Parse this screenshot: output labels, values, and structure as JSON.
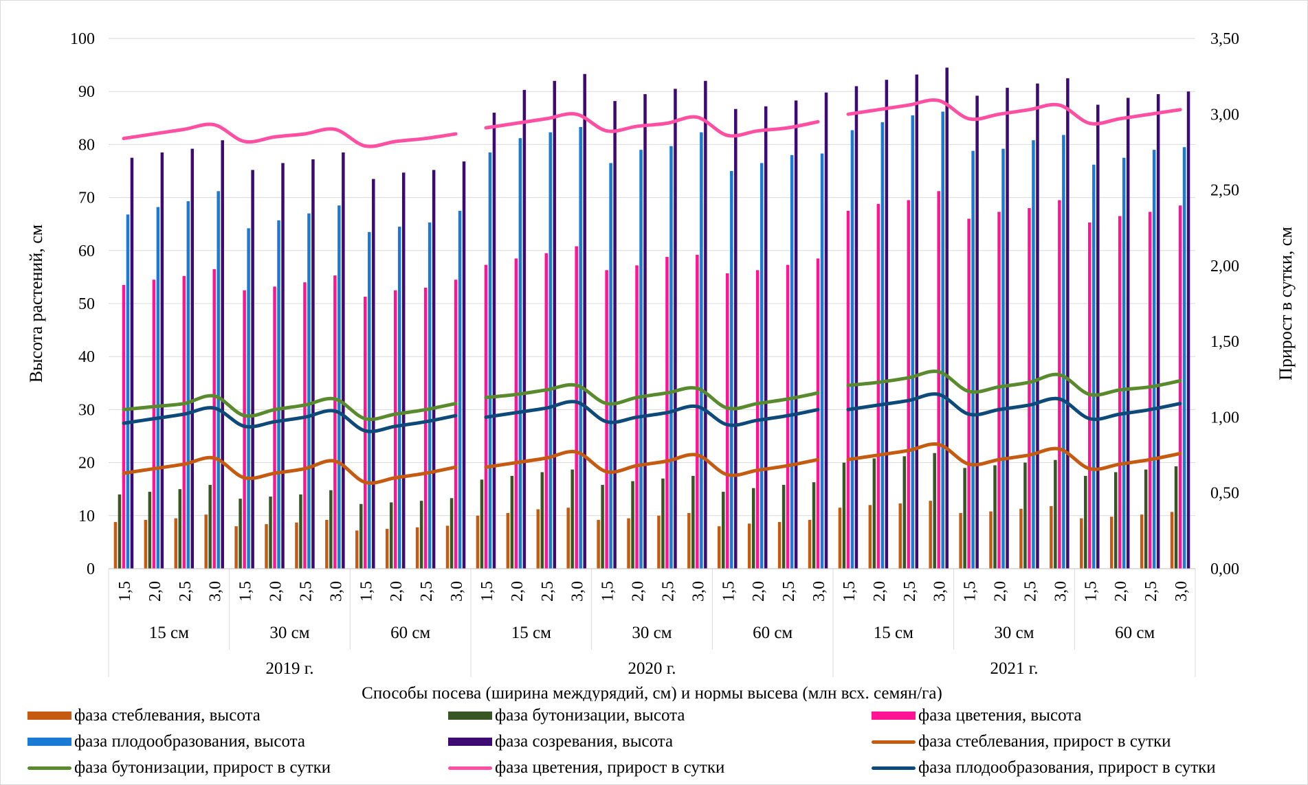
{
  "chart_data": {
    "type": "bar",
    "xlabel": "Способы посева (ширина междурядий, см) и нормы высева (млн всх. семян/га)",
    "ylabel": "Высота растений, см",
    "y2label": "Прирост в сутки, см",
    "ylim": [
      0,
      100
    ],
    "y2lim": [
      0,
      3.5
    ],
    "yticks": [
      "0",
      "10",
      "20",
      "30",
      "40",
      "50",
      "60",
      "70",
      "80",
      "90",
      "100"
    ],
    "y2ticks": [
      "0,00",
      "0,50",
      "1,00",
      "1,50",
      "2,00",
      "2,50",
      "3,00",
      "3,50"
    ],
    "grid": true,
    "legend_position": "bottom",
    "years": [
      "2019 г.",
      "2020 г.",
      "2021 г."
    ],
    "spacings": [
      "15 см",
      "30 см",
      "60 см"
    ],
    "rates": [
      "1,5",
      "2,0",
      "2,5",
      "3,0"
    ],
    "bar_series": [
      {
        "name": "фаза стеблевания, высота",
        "color": "#c55a11",
        "values": [
          [
            8.8,
            9.2,
            9.5,
            10.2,
            8.0,
            8.4,
            8.7,
            9.2,
            7.2,
            7.5,
            7.8,
            8.1
          ],
          [
            10.0,
            10.5,
            11.2,
            11.5,
            9.2,
            9.5,
            10.0,
            10.5,
            8.0,
            8.5,
            8.8,
            9.2
          ],
          [
            11.5,
            12.0,
            12.3,
            12.8,
            10.5,
            10.8,
            11.3,
            11.8,
            9.5,
            9.8,
            10.2,
            10.7
          ]
        ]
      },
      {
        "name": "фаза бутонизации, высота",
        "color": "#375623",
        "values": [
          [
            14.0,
            14.5,
            15.0,
            15.8,
            13.2,
            13.6,
            14.0,
            14.8,
            12.2,
            12.5,
            12.8,
            13.3
          ],
          [
            16.8,
            17.5,
            18.2,
            18.7,
            15.8,
            16.5,
            17.0,
            17.5,
            14.5,
            15.2,
            15.8,
            16.3
          ],
          [
            20.0,
            20.8,
            21.2,
            21.8,
            19.0,
            19.5,
            20.0,
            20.5,
            17.5,
            18.2,
            18.7,
            19.3
          ]
        ]
      },
      {
        "name": "фаза цветения, высота",
        "color": "#ff1493",
        "values": [
          [
            53.5,
            54.5,
            55.2,
            56.5,
            52.5,
            53.2,
            54.0,
            55.3,
            51.3,
            52.5,
            53.0,
            54.5
          ],
          [
            57.3,
            58.5,
            59.5,
            60.8,
            56.3,
            57.2,
            58.8,
            59.2,
            55.7,
            56.3,
            57.3,
            58.5
          ],
          [
            67.5,
            68.8,
            69.5,
            71.2,
            66.0,
            67.3,
            68.0,
            69.5,
            65.3,
            66.5,
            67.3,
            68.5
          ]
        ]
      },
      {
        "name": "фаза плодообразования, высота",
        "color": "#1a7ad4",
        "values": [
          [
            66.8,
            68.2,
            69.3,
            71.2,
            64.2,
            65.7,
            67.0,
            68.5,
            63.5,
            64.5,
            65.3,
            67.5
          ],
          [
            78.5,
            81.2,
            82.3,
            83.3,
            76.5,
            79.0,
            79.7,
            82.3,
            75.0,
            76.5,
            78.0,
            78.3
          ],
          [
            82.7,
            84.2,
            85.5,
            86.2,
            78.8,
            79.2,
            80.8,
            81.8,
            76.2,
            77.5,
            79.0,
            79.5
          ]
        ]
      },
      {
        "name": "фаза созревания, высота",
        "color": "#3d0a73",
        "values": [
          [
            77.5,
            78.5,
            79.2,
            80.8,
            75.2,
            76.5,
            77.2,
            78.5,
            73.5,
            74.7,
            75.2,
            76.8
          ],
          [
            86.0,
            90.3,
            92.0,
            93.3,
            88.2,
            89.5,
            90.5,
            92.0,
            86.7,
            87.2,
            88.3,
            89.8
          ],
          [
            91.0,
            92.2,
            93.2,
            94.5,
            89.2,
            90.7,
            91.5,
            92.5,
            87.5,
            88.8,
            89.5,
            90.0
          ]
        ]
      }
    ],
    "line_series": [
      {
        "name": "фаза стеблевания, прирост в сутки",
        "color": "#c55a11",
        "values": [
          [
            0.63,
            0.66,
            0.69,
            0.73,
            0.6,
            0.63,
            0.66,
            0.71,
            0.57,
            0.6,
            0.63,
            0.67
          ],
          [
            0.67,
            0.7,
            0.73,
            0.77,
            0.64,
            0.68,
            0.71,
            0.75,
            0.62,
            0.65,
            0.68,
            0.72
          ],
          [
            0.72,
            0.75,
            0.78,
            0.82,
            0.69,
            0.72,
            0.75,
            0.79,
            0.66,
            0.69,
            0.72,
            0.76
          ]
        ]
      },
      {
        "name": "фаза бутонизации, прирост в сутки",
        "color": "#5a8a2e",
        "values": [
          [
            1.05,
            1.07,
            1.09,
            1.14,
            1.01,
            1.05,
            1.08,
            1.12,
            0.99,
            1.02,
            1.05,
            1.09
          ],
          [
            1.13,
            1.15,
            1.18,
            1.21,
            1.09,
            1.13,
            1.16,
            1.19,
            1.06,
            1.09,
            1.12,
            1.16
          ],
          [
            1.21,
            1.23,
            1.26,
            1.3,
            1.17,
            1.2,
            1.23,
            1.28,
            1.15,
            1.18,
            1.2,
            1.24
          ]
        ]
      },
      {
        "name": "фаза цветения, прирост в сутки",
        "color": "#ff4fa3",
        "values": [
          [
            2.84,
            2.87,
            2.9,
            2.93,
            2.82,
            2.85,
            2.87,
            2.9,
            2.79,
            2.82,
            2.84,
            2.87
          ],
          [
            2.91,
            2.94,
            2.97,
            3.0,
            2.89,
            2.92,
            2.94,
            2.98,
            2.86,
            2.89,
            2.91,
            2.95
          ],
          [
            3.0,
            3.03,
            3.06,
            3.09,
            2.97,
            3.0,
            3.03,
            3.06,
            2.94,
            2.97,
            3.0,
            3.03
          ]
        ]
      },
      {
        "name": "фаза плодообразования, прирост в сутки",
        "color": "#0d4a7a",
        "values": [
          [
            0.96,
            0.99,
            1.02,
            1.06,
            0.94,
            0.97,
            1.0,
            1.04,
            0.91,
            0.94,
            0.97,
            1.01
          ],
          [
            1.0,
            1.03,
            1.06,
            1.1,
            0.97,
            1.0,
            1.03,
            1.07,
            0.95,
            0.98,
            1.01,
            1.05
          ],
          [
            1.05,
            1.08,
            1.11,
            1.15,
            1.02,
            1.05,
            1.08,
            1.12,
            0.99,
            1.02,
            1.05,
            1.09
          ]
        ]
      }
    ]
  }
}
